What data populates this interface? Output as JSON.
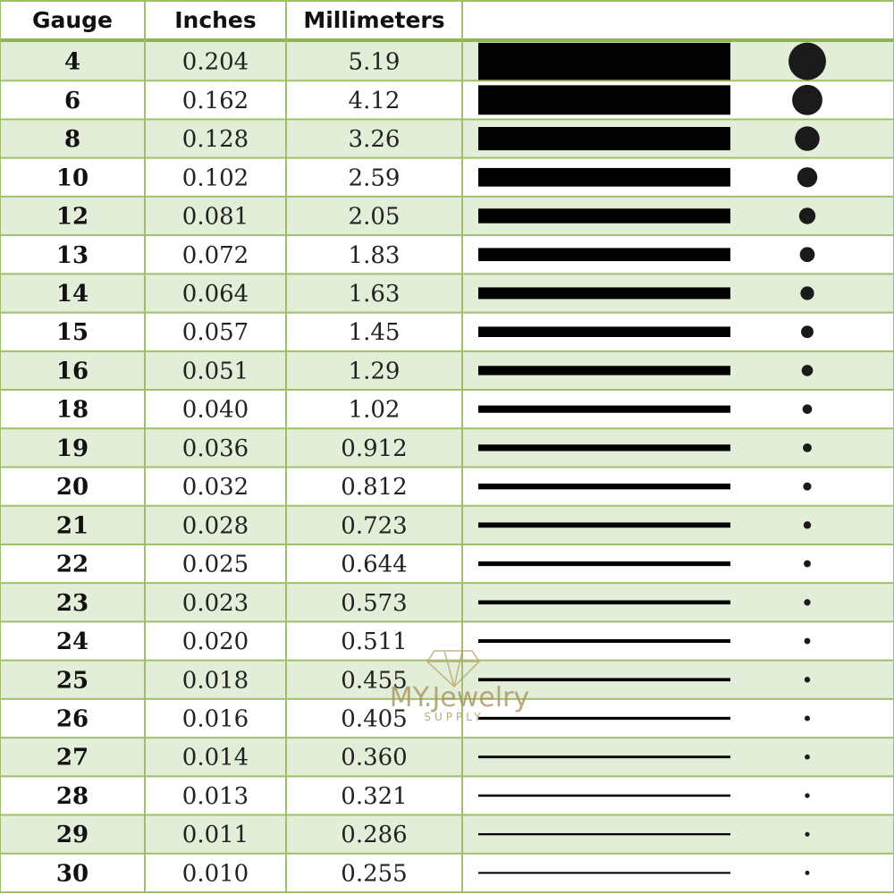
{
  "header": [
    "Gauge",
    "Inches",
    "Millimeters"
  ],
  "rows": [
    [
      "4",
      "0.204",
      "5.19"
    ],
    [
      "6",
      "0.162",
      "4.12"
    ],
    [
      "8",
      "0.128",
      "3.26"
    ],
    [
      "10",
      "0.102",
      "2.59"
    ],
    [
      "12",
      "0.081",
      "2.05"
    ],
    [
      "13",
      "0.072",
      "1.83"
    ],
    [
      "14",
      "0.064",
      "1.63"
    ],
    [
      "15",
      "0.057",
      "1.45"
    ],
    [
      "16",
      "0.051",
      "1.29"
    ],
    [
      "18",
      "0.040",
      "1.02"
    ],
    [
      "19",
      "0.036",
      "0.912"
    ],
    [
      "20",
      "0.032",
      "0.812"
    ],
    [
      "21",
      "0.028",
      "0.723"
    ],
    [
      "22",
      "0.025",
      "0.644"
    ],
    [
      "23",
      "0.023",
      "0.573"
    ],
    [
      "24",
      "0.020",
      "0.511"
    ],
    [
      "25",
      "0.018",
      "0.455"
    ],
    [
      "26",
      "0.016",
      "0.405"
    ],
    [
      "27",
      "0.014",
      "0.360"
    ],
    [
      "28",
      "0.013",
      "0.321"
    ],
    [
      "29",
      "0.011",
      "0.286"
    ],
    [
      "30",
      "0.010",
      "0.255"
    ]
  ],
  "watermark": {
    "brand": "MY.Jewelry",
    "sub": "SUPPLY"
  }
}
